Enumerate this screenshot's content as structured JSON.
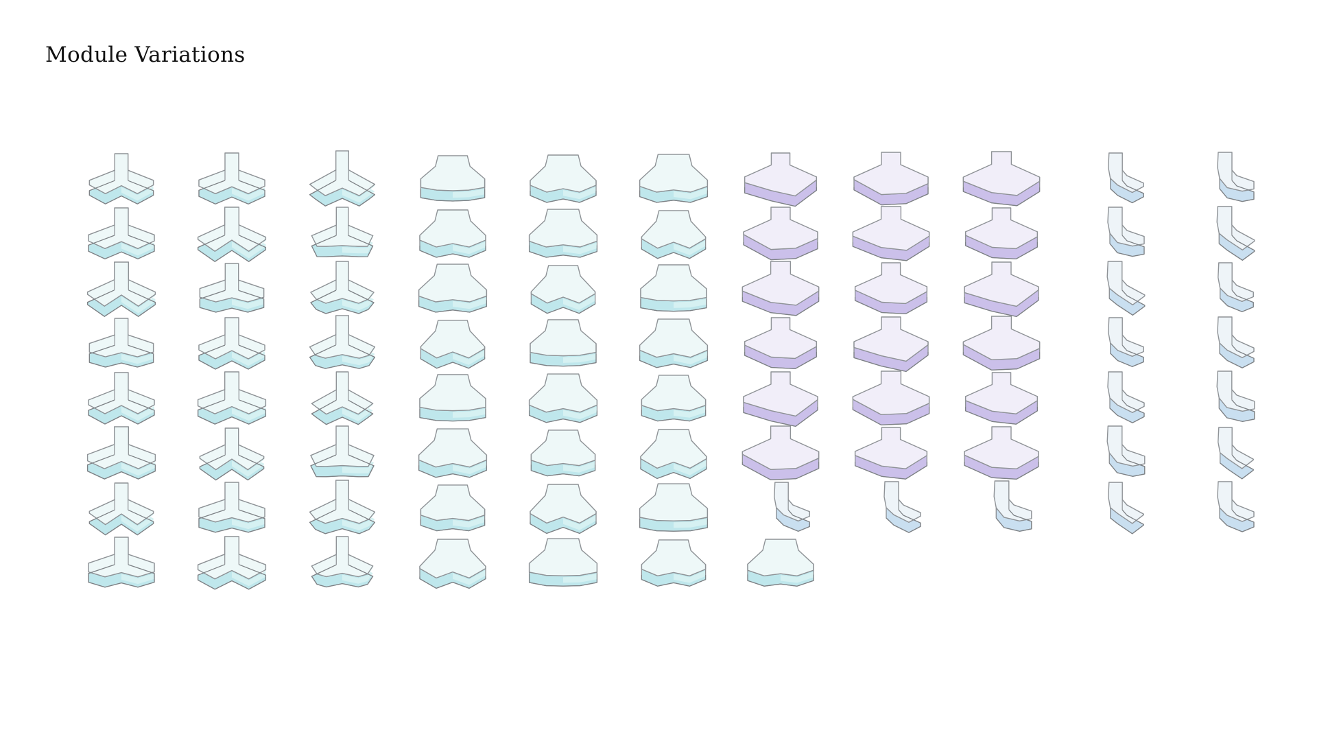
{
  "title": "Module Variations",
  "colors": {
    "y_top": "#eef8f8",
    "y_side": "#bfe7ec",
    "y_side_light": "#d6f1f2",
    "p_top": "#f1eef9",
    "p_side": "#cbc0ea",
    "c_top": "#eef4f8",
    "c_side": "#c9dff0",
    "outline": "#8e9296"
  },
  "columns": [
    {
      "shape": "y-wide",
      "count": 8,
      "tint": "teal"
    },
    {
      "shape": "y-wide",
      "count": 8,
      "tint": "teal"
    },
    {
      "shape": "y-narrow",
      "count": 8,
      "tint": "teal"
    },
    {
      "shape": "trapezoid",
      "count": 8,
      "tint": "teal"
    },
    {
      "shape": "trapezoid",
      "count": 8,
      "tint": "teal"
    },
    {
      "shape": "trapezoid",
      "count": 8,
      "tint": "teal"
    },
    {
      "shape": "step-slab",
      "count": 6,
      "tint": "purple",
      "extra": [
        "curve",
        "trapezoid"
      ]
    },
    {
      "shape": "step-slab",
      "count": 6,
      "tint": "purple",
      "extra": [
        "curve"
      ]
    },
    {
      "shape": "step-slab",
      "count": 6,
      "tint": "purple",
      "extra": [
        "curve"
      ]
    },
    {
      "shape": "curve",
      "count": 7,
      "tint": "blue"
    },
    {
      "shape": "curve",
      "count": 7,
      "tint": "blue"
    }
  ]
}
